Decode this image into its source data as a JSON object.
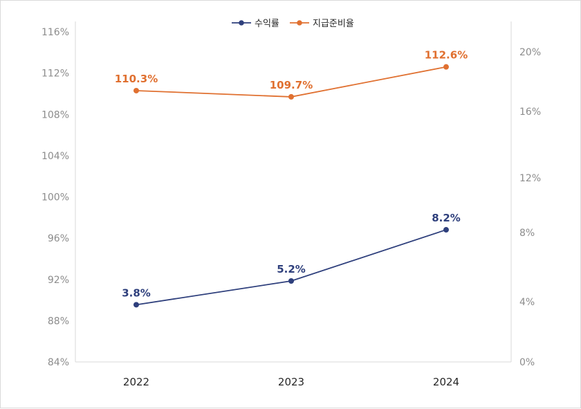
{
  "chart_data": {
    "type": "line",
    "title": "",
    "xlabel": "",
    "ylabel": "",
    "categories": [
      "2022",
      "2023",
      "2024"
    ],
    "legend": {
      "position": "top-center"
    },
    "grid": false,
    "y_left": {
      "range": [
        84,
        116
      ],
      "ticks": [
        "84%",
        "88%",
        "92%",
        "96%",
        "100%",
        "104%",
        "108%",
        "112%",
        "116%"
      ]
    },
    "y_right": {
      "ticks": [
        "0%",
        "4%",
        "8%",
        "12%",
        "16%",
        "20%"
      ]
    },
    "series": [
      {
        "name": "수익률",
        "axis": "right",
        "color": "#2e3f7c",
        "values": [
          3.8,
          5.2,
          8.2
        ],
        "labels": [
          "3.8%",
          "5.2%",
          "8.2%"
        ]
      },
      {
        "name": "지급준비율",
        "axis": "left",
        "color": "#e07030",
        "values": [
          110.3,
          109.7,
          112.6
        ],
        "labels": [
          "110.3%",
          "109.7%",
          "112.6%"
        ]
      }
    ]
  }
}
